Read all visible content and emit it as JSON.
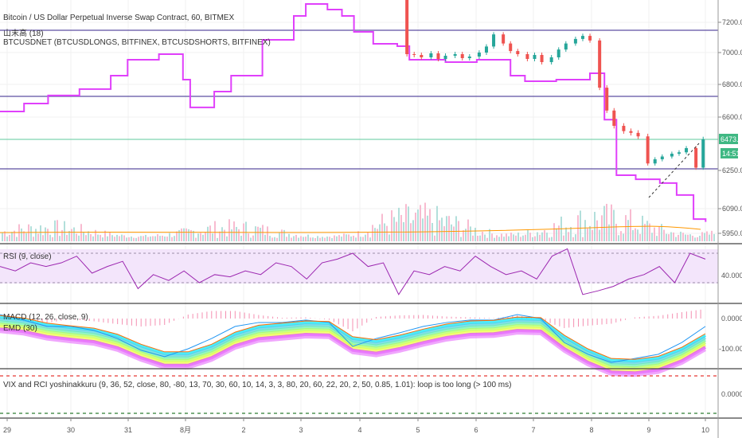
{
  "legends": {
    "main": "Bitcoin / US Dollar Perpetual Inverse Swap Contract, 60, BITMEX",
    "indicator1": "山末高 (18)",
    "indicator2": "BTCUSDNET (BTCUSDLONGS, BITFINEX, BTCUSDSHORTS, BITFINEX)",
    "rsi": "RSI (9, close)",
    "macd": "MACD (12, 26, close, 9)",
    "ema": "EMD (30)",
    "vix": "VIX and RCI yoshinakkuru (9, 36, 52, close, 80, -80, 13, 70, 30, 60, 10, 14, 3, 3, 80, 20, 60, 22, 20, 2, 50, 0.85, 1.01): loop is too long (> 100 ms)"
  },
  "price_axis": [
    "7200.0",
    "7000.0",
    "6800.0",
    "6600.0",
    "6250.0",
    "6090.0",
    "5950.0"
  ],
  "last_price": "6473.0",
  "countdown": "14:51",
  "rsi_axis": "40.0000",
  "macd_axis": [
    "0.0000",
    "-100.0000"
  ],
  "vix_axis": "0.0000",
  "time_axis": [
    "29",
    "30",
    "31",
    "8月",
    "2",
    "3",
    "4",
    "5",
    "6",
    "7",
    "8",
    "9",
    "10"
  ],
  "colors": {
    "up": "#26a69a",
    "down": "#ef5350",
    "net_line": "#e040fb",
    "hline": "#5e4fa2",
    "last_price": "#3fb883",
    "rsi": "#9c27b0",
    "macd": "#2196f3",
    "signal": "#ff6d00",
    "hist": "#f48fb1"
  },
  "chart_data": [
    {
      "type": "candlestick",
      "title": "Bitcoin / US Dollar Perpetual Inverse Swap Contract, 60, BITMEX",
      "ylim": [
        5900,
        7400
      ],
      "first_open": 7380,
      "times": [
        "08-04 22:00",
        "08-05 01:00",
        "08-05 04:00",
        "08-05 08:00",
        "08-05 11:00",
        "08-05 14:00",
        "08-05 18:00",
        "08-05 21:00",
        "08-06 00:00",
        "08-06 04:00",
        "08-06 07:00",
        "08-06 10:00",
        "08-06 14:00",
        "08-06 17:00",
        "08-06 20:00",
        "08-07 00:00",
        "08-07 03:00",
        "08-07 06:00",
        "08-07 10:00",
        "08-07 13:00",
        "08-07 16:00",
        "08-07 20:00",
        "08-07 23:00",
        "08-08 02:00",
        "08-08 06:00",
        "08-08 09:00",
        "08-08 12:00",
        "08-08 16:00",
        "08-08 19:00",
        "08-08 22:00",
        "08-09 02:00",
        "08-09 05:00",
        "08-09 08:00",
        "08-09 12:00",
        "08-09 15:00",
        "08-09 18:00",
        "08-09 22:00",
        "08-10 01:00"
      ],
      "close": [
        6990,
        6985,
        6970,
        6995,
        6960,
        6980,
        6990,
        6965,
        6975,
        7000,
        7040,
        7120,
        7060,
        7010,
        6990,
        6960,
        6985,
        6940,
        6970,
        7020,
        7060,
        7090,
        7110,
        7080,
        6780,
        6640,
        6550,
        6520,
        6510,
        6490,
        6300,
        6330,
        6350,
        6370,
        6380,
        6410,
        6270,
        6473
      ],
      "horizontal_levels": [
        7150,
        6745,
        6300,
        6473
      ]
    },
    {
      "type": "line",
      "name": "BTCUSDNET (BTCUSDLONGS, BITFINEX, BTCUSDSHORTS, BITFINEX)",
      "times": [
        "07-28 21:00",
        "07-29 07:00",
        "07-29 17:00",
        "07-30 06:00",
        "07-30 19:00",
        "07-31 02:00",
        "07-31 15:00",
        "08-01 01:00",
        "08-01 04:00",
        "08-01 14:00",
        "08-01 21:00",
        "08-02 10:00",
        "08-02 23:00",
        "08-03 04:00",
        "08-03 13:00",
        "08-03 19:00",
        "08-04 00:00",
        "08-04 08:00",
        "08-04 18:00",
        "08-04 23:00",
        "08-05 14:00",
        "08-06 03:00",
        "08-06 17:00",
        "08-06 23:00",
        "08-07 12:00",
        "08-08 02:00",
        "08-08 08:00",
        "08-08 13:00",
        "08-08 21:00",
        "08-09 07:00",
        "08-09 14:00",
        "08-09 21:00",
        "08-10 02:00"
      ],
      "values": [
        6634,
        6683,
        6732,
        6771,
        6855,
        6955,
        6990,
        6830,
        6659,
        6756,
        6855,
        7084,
        7242,
        7321,
        7284,
        7242,
        7137,
        7058,
        7042,
        6955,
        6940,
        6955,
        6855,
        6820,
        6830,
        6870,
        6585,
        6230,
        6213,
        6197,
        6147,
        6031,
        6015
      ]
    },
    {
      "type": "line",
      "name": "RSI (9, close)",
      "ylim": [
        10,
        80
      ],
      "bands": [
        70,
        30
      ],
      "values": [
        52,
        46,
        57,
        52,
        57,
        66,
        43,
        52,
        59,
        22,
        41,
        33,
        46,
        30,
        41,
        38,
        46,
        41,
        57,
        52,
        35,
        57,
        62,
        70,
        52,
        57,
        14,
        46,
        41,
        52,
        46,
        66,
        52,
        41,
        46,
        35,
        66,
        76,
        14,
        19,
        25,
        35,
        41,
        52,
        30,
        70,
        62
      ]
    },
    {
      "type": "line",
      "name": "MACD (12, 26, close, 9)",
      "ylim": [
        -170,
        30
      ],
      "macd": [
        13,
        -5,
        -26,
        -26,
        -39,
        -66,
        -105,
        -126,
        -100,
        -66,
        -26,
        -13,
        -13,
        -5,
        -13,
        -92,
        -66,
        -47,
        -26,
        -13,
        -5,
        -5,
        13,
        0,
        -79,
        -118,
        -145,
        -132,
        -118,
        -79,
        -26
      ],
      "signal": [
        10,
        2,
        -15,
        -24,
        -32,
        -52,
        -85,
        -110,
        -110,
        -85,
        -45,
        -22,
        -15,
        -8,
        -10,
        -60,
        -70,
        -55,
        -35,
        -18,
        -8,
        -6,
        5,
        3,
        -55,
        -100,
        -132,
        -135,
        -125,
        -95,
        -50
      ]
    }
  ]
}
